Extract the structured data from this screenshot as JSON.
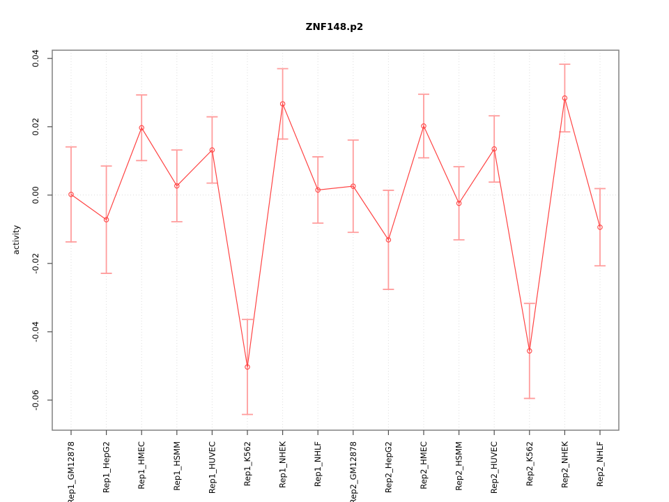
{
  "chart_data": {
    "type": "line",
    "title": "ZNF148.p2",
    "ylabel": "activity",
    "xlabel": "",
    "marker": "open-circle",
    "legend": "none",
    "categories": [
      "Rep1_GM12878",
      "Rep1_HepG2",
      "Rep1_HMEC",
      "Rep1_HSMM",
      "Rep1_HUVEC",
      "Rep1_K562",
      "Rep1_NHEK",
      "Rep1_NHLF",
      "Rep2_GM12878",
      "Rep2_HepG2",
      "Rep2_HMEC",
      "Rep2_HSMM",
      "Rep2_HUVEC",
      "Rep2_K562",
      "Rep2_NHEK",
      "Rep2_NHLF"
    ],
    "values": [
      0.0002,
      -0.0072,
      0.0197,
      0.0027,
      0.0132,
      -0.0503,
      0.0267,
      0.0015,
      0.0026,
      -0.0131,
      0.0202,
      -0.0024,
      0.0135,
      -0.0456,
      0.0284,
      -0.0094
    ],
    "errors": [
      0.0139,
      0.0157,
      0.0096,
      0.0105,
      0.0097,
      0.0139,
      0.0103,
      0.0097,
      0.0135,
      0.0145,
      0.0093,
      0.0107,
      0.0097,
      0.0139,
      0.0099,
      0.0113
    ],
    "ylim": [
      -0.0688,
      0.0424
    ],
    "yticks": [
      0.04,
      0.02,
      0.0,
      -0.02,
      -0.04,
      -0.06
    ],
    "ytick_labels": [
      "0.04",
      "0.02",
      "0.00",
      "-0.02",
      "-0.04",
      "-0.06"
    ],
    "grid": {
      "vertical_dotted": true,
      "zero_line_dotted": true
    },
    "colors": {
      "series": "#ff4242",
      "error_bars": "#ff9c9c",
      "grid": "#dcdcdc",
      "box": "#818181",
      "tick": "#4d4d4d",
      "text": "#000000",
      "background": "#ffffff"
    }
  }
}
